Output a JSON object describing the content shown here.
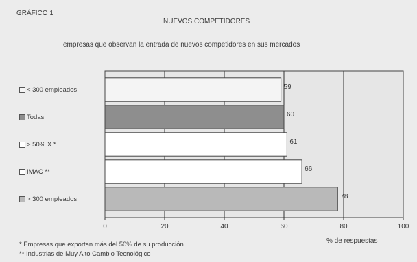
{
  "figure_label": "GRÁFICO 1",
  "chart_data": {
    "type": "bar",
    "orientation": "horizontal",
    "title": "NUEVOS COMPETIDORES",
    "subtitle": "empresas que observan la entrada de nuevos competidores en sus mercados",
    "categories": [
      "< 300 empleados",
      "Todas",
      "> 50% X *",
      "IMAC **",
      "> 300 empleados"
    ],
    "values": [
      59,
      60,
      61,
      66,
      78
    ],
    "data_labels": [
      "59",
      "60",
      "61",
      "66",
      "78"
    ],
    "bar_colors": [
      "#f4f4f4",
      "#8e8e8e",
      "#ffffff",
      "#ffffff",
      "#b9b9b9"
    ],
    "xlabel": "% de respuestas",
    "ylabel": "",
    "xlim": [
      0,
      100
    ],
    "x_ticks": [
      0,
      20,
      40,
      60,
      80,
      100
    ],
    "x_tick_labels": [
      "0",
      "20",
      "40",
      "60",
      "80",
      "100"
    ],
    "grid": "vertical",
    "plot_background": "#e6e6e6"
  },
  "footnotes": [
    "* Empresas que exportan más del 50% de su producción",
    "** Industrias de Muy Alto Cambio Tecnológico"
  ]
}
